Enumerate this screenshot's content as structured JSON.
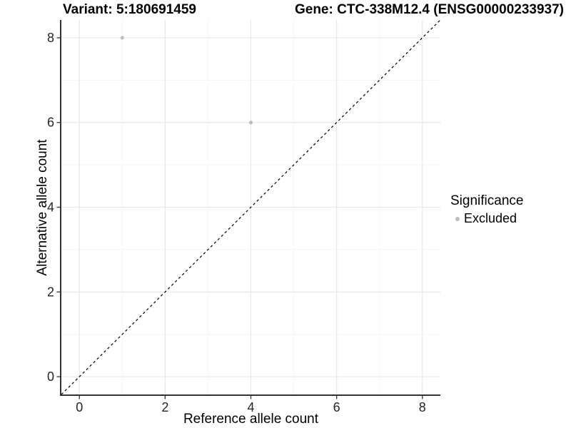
{
  "chart_data": {
    "type": "scatter",
    "title_left": "Variant: 5:180691459",
    "title_right": "Gene: CTC-338M12.4 (ENSG00000233937)",
    "xlabel": "Reference allele count",
    "ylabel": "Alternative allele count",
    "xlim": [
      -0.42,
      8.42
    ],
    "ylim": [
      -0.42,
      8.42
    ],
    "xticks": [
      0,
      2,
      4,
      6,
      8
    ],
    "yticks": [
      0,
      2,
      4,
      6,
      8
    ],
    "xticks_minor": [
      1,
      3,
      5,
      7
    ],
    "yticks_minor": [
      1,
      3,
      5,
      7
    ],
    "grid": "major+minor",
    "identity_line": {
      "equation": "y = x",
      "style": "dashed",
      "color": "#000000"
    },
    "series": [
      {
        "name": "Excluded",
        "color": "#bdbdbd",
        "points": [
          {
            "x": 1,
            "y": 8
          },
          {
            "x": 4,
            "y": 6
          }
        ]
      }
    ],
    "legend": {
      "title": "Significance",
      "position": "right",
      "items": [
        {
          "label": "Excluded",
          "color": "#bdbdbd"
        }
      ]
    },
    "colors": {
      "grid_major": "#e8e8e8",
      "grid_minor": "#f4f4f4",
      "axis_line": "#333333",
      "tick_label": "#262626",
      "background": "#ffffff"
    }
  }
}
